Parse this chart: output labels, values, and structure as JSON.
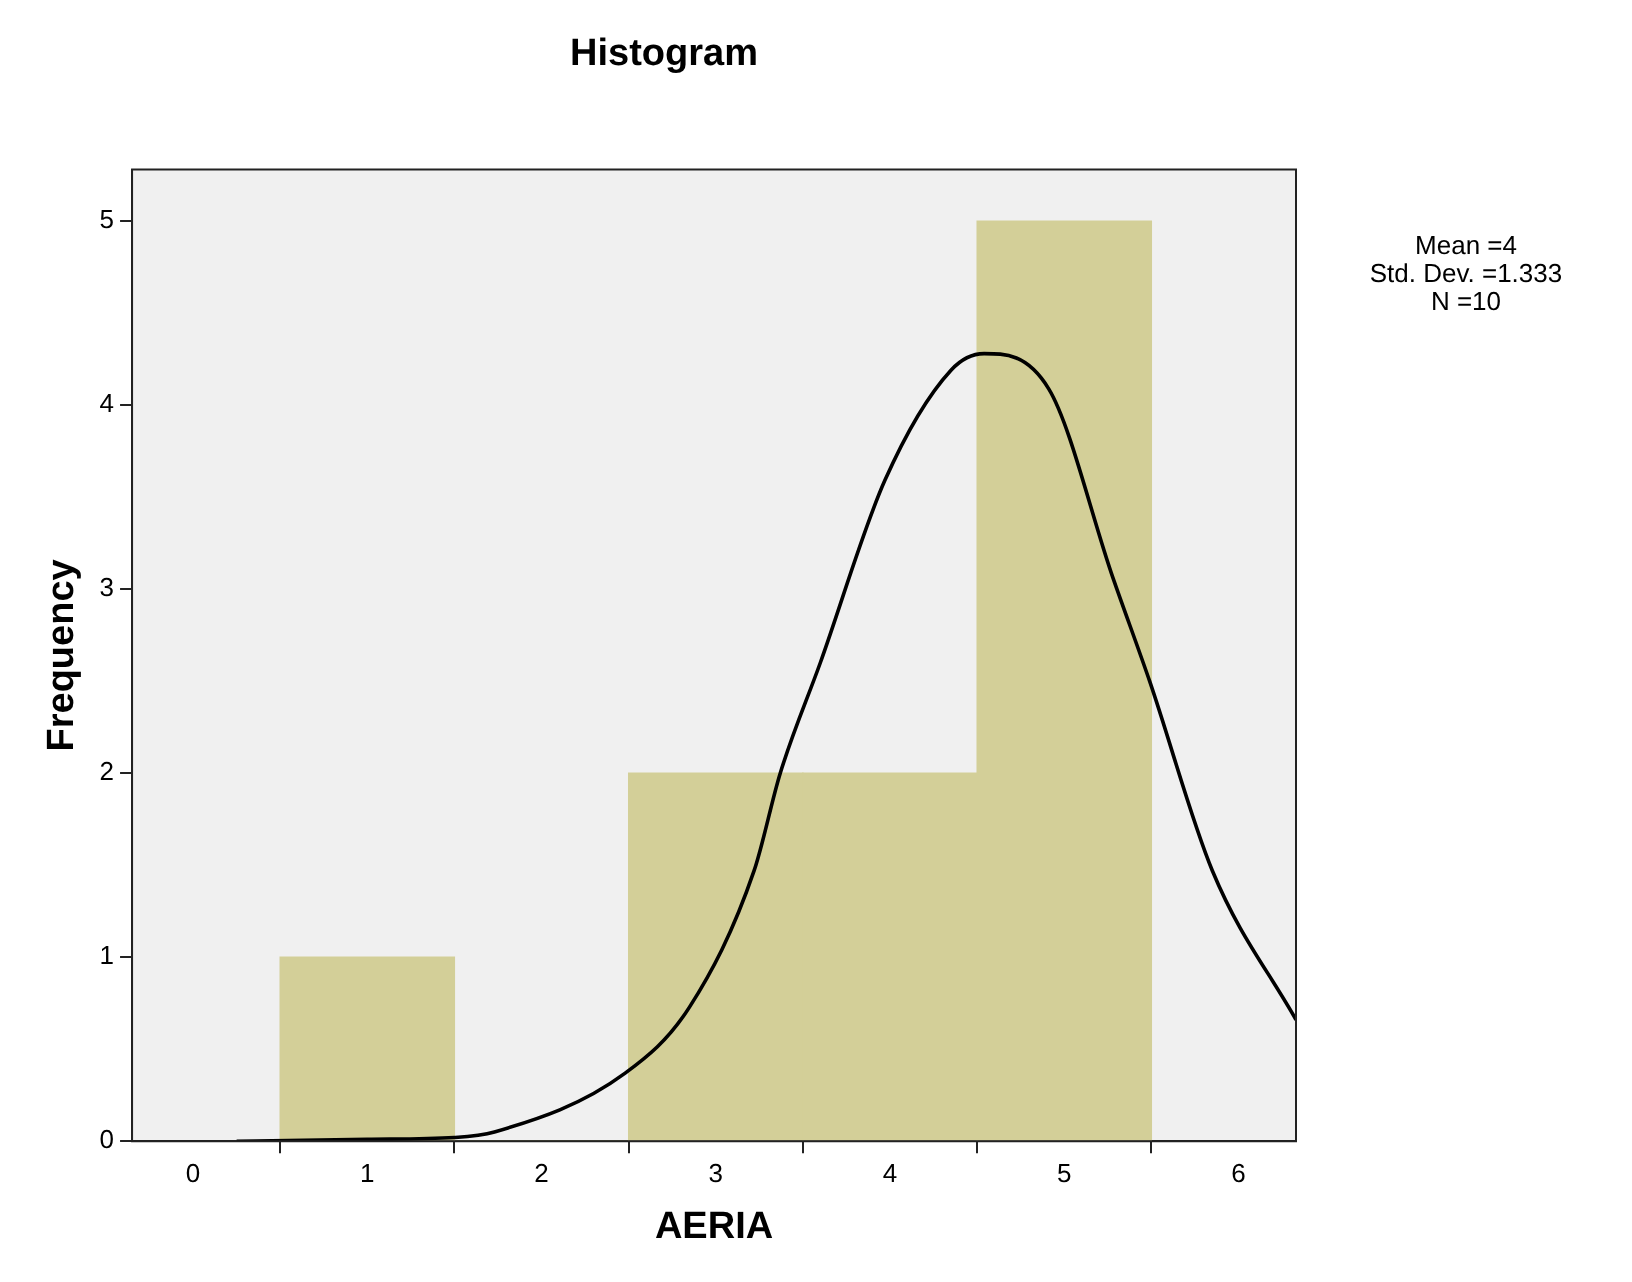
{
  "chart_data": {
    "type": "histogram",
    "title": "Histogram",
    "xlabel": "AERIA",
    "ylabel": "Frequency",
    "bins": [
      0.5,
      1.5,
      2.5,
      3.5,
      4.5,
      5.5
    ],
    "values": [
      1,
      0,
      2,
      2,
      5
    ],
    "color": "#d3cf98",
    "series": [
      {
        "type": "line",
        "color": "#000000",
        "x": [
          0.25,
          1.0,
          1.5,
          1.73,
          2.48,
          2.85,
          3.22,
          3.37,
          3.6,
          3.97,
          4.35,
          4.54,
          4.91,
          5.28,
          5.49,
          5.85,
          6.33
        ],
        "values": [
          0,
          0.01,
          0.02,
          0.05,
          0.37,
          0.73,
          1.47,
          2.0,
          2.6,
          3.59,
          4.19,
          4.28,
          4.09,
          3.06,
          2.5,
          1.47,
          0.66
        ]
      }
    ],
    "xlim": [
      -0.35,
      6.33
    ],
    "xticks": [
      0,
      1,
      2,
      3,
      4,
      5,
      6
    ],
    "ylim": [
      0,
      5.28
    ],
    "yticks": [
      0,
      1,
      2,
      3,
      4,
      5
    ],
    "annotations": [
      "Mean =4",
      "Std. Dev. =1.333",
      "N =10"
    ],
    "grid": false,
    "legend": false,
    "marker": "none"
  }
}
